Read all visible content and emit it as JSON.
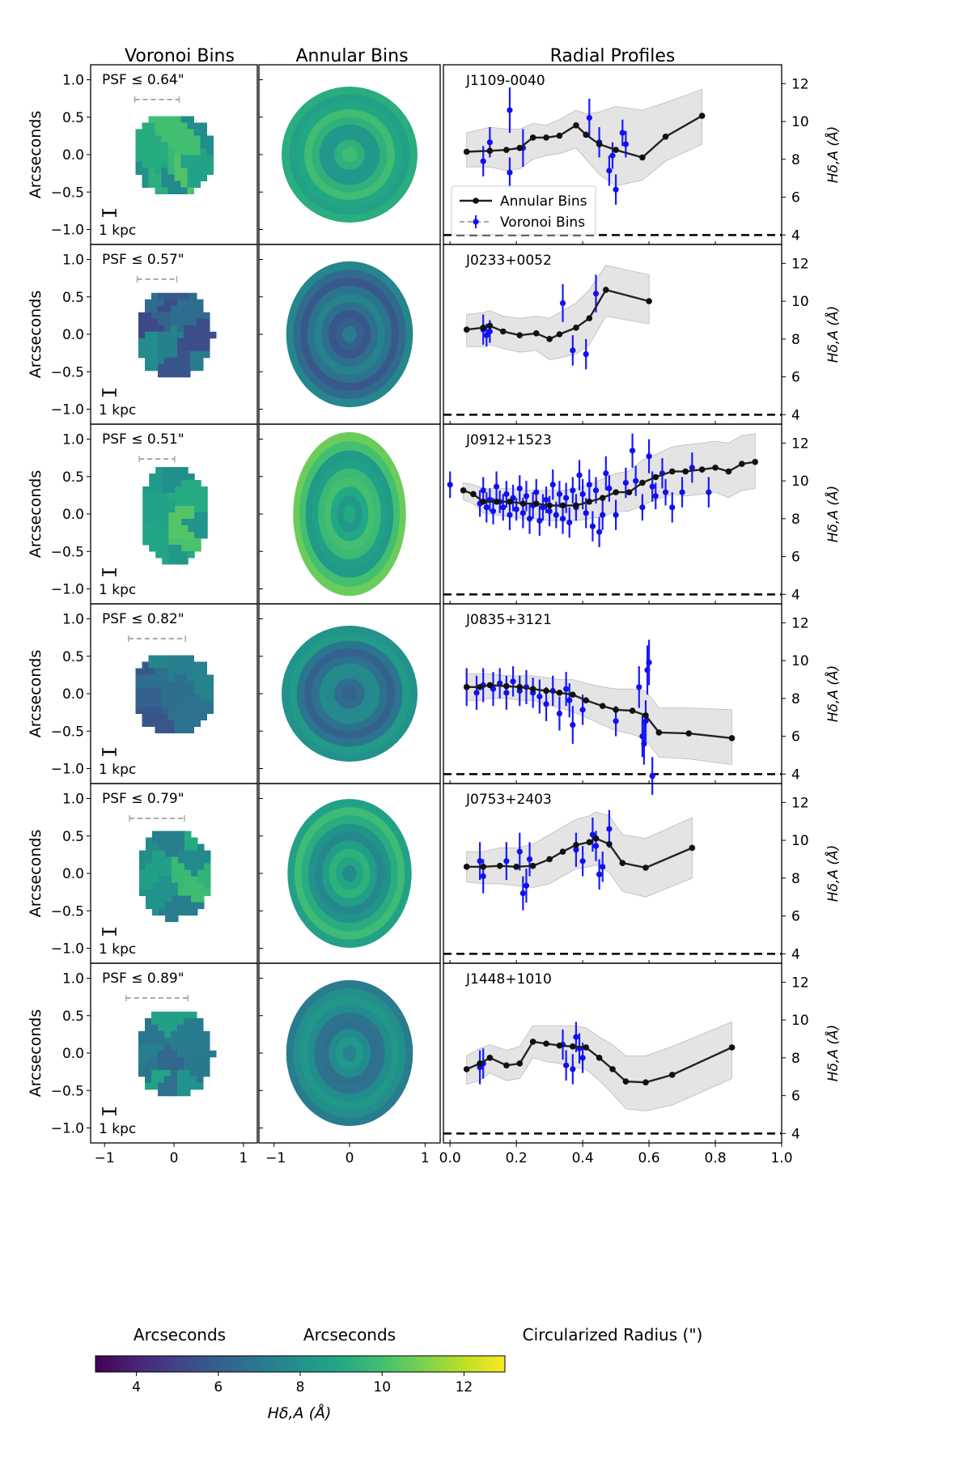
{
  "column_titles": [
    "Voronoi Bins",
    "Annular Bins",
    "Radial Profiles"
  ],
  "legend": {
    "annular": "Annular Bins",
    "voronoi": "Voronoi Bins"
  },
  "scale_bar_label": "1 kpc",
  "axes": {
    "map_ylabel": "Arcseconds",
    "map_xlabel": "Arcseconds",
    "profile_xlabel": "Circularized Radius (\")",
    "profile_ylabel": "Hδ,A (Å)",
    "colorbar_label": "Hδ,A (Å)",
    "map_ticks": [
      "1.0",
      "0.5",
      "0.0",
      "−0.5",
      "−1.0"
    ],
    "map_x_ticks_left": [
      "−1",
      "0",
      "1"
    ],
    "map_x_ticks_mid": [
      "−1",
      "0",
      "1"
    ],
    "profile_x_ticks": [
      "0.0",
      "0.2",
      "0.4",
      "0.6",
      "0.8",
      "1.0"
    ],
    "profile_y_ticks": [
      "12",
      "10",
      "8",
      "6",
      "4"
    ],
    "colorbar_ticks": [
      "4",
      "6",
      "8",
      "10",
      "12"
    ]
  },
  "chart_data": {
    "type": "line",
    "xlabel": "Circularized Radius (\")",
    "ylabel": "Hδ,A (Å)",
    "xlim": [
      -0.02,
      1.0
    ],
    "ylim": [
      3.5,
      13.0
    ],
    "reference_line_y": 4,
    "colorbar_range": [
      3,
      13
    ],
    "galaxies": [
      {
        "id": "J1109-0040",
        "psf": "PSF ≤ 0.64\"",
        "psf_arcsec": 0.64,
        "map_center": 9.0,
        "aspect": 1.0,
        "annular": {
          "x": [
            0.05,
            0.12,
            0.17,
            0.21,
            0.25,
            0.29,
            0.33,
            0.38,
            0.41,
            0.45,
            0.5,
            0.58,
            0.65,
            0.76
          ],
          "y": [
            8.4,
            8.45,
            8.5,
            8.6,
            9.15,
            9.15,
            9.25,
            9.8,
            9.3,
            8.8,
            8.5,
            8.1,
            9.2,
            10.3
          ]
        },
        "voronoi": [
          [
            0.1,
            7.9,
            0.8
          ],
          [
            0.12,
            8.9,
            0.8
          ],
          [
            0.18,
            10.6,
            1.2
          ],
          [
            0.18,
            7.3,
            0.8
          ],
          [
            0.22,
            8.6,
            1.0
          ],
          [
            0.42,
            10.2,
            1.0
          ],
          [
            0.45,
            8.9,
            0.8
          ],
          [
            0.48,
            7.4,
            0.8
          ],
          [
            0.49,
            8.2,
            0.7
          ],
          [
            0.5,
            6.4,
            0.8
          ],
          [
            0.52,
            9.4,
            0.7
          ],
          [
            0.53,
            8.8,
            0.7
          ]
        ],
        "band_upper": [
          9.4,
          9.7,
          9.6,
          9.6,
          9.9,
          9.8,
          10.1,
          10.6,
          10.4,
          10.5,
          10.8,
          10.6,
          11.0,
          11.7
        ],
        "band_lower": [
          7.6,
          7.6,
          7.4,
          7.5,
          8.0,
          8.2,
          8.3,
          8.6,
          8.0,
          7.2,
          6.6,
          6.9,
          7.9,
          8.8
        ]
      },
      {
        "id": "J0233+0052",
        "psf": "PSF ≤ 0.57\"",
        "psf_arcsec": 0.57,
        "map_center": 6.5,
        "aspect": 1.15,
        "annular": {
          "x": [
            0.05,
            0.1,
            0.12,
            0.16,
            0.21,
            0.26,
            0.3,
            0.33,
            0.38,
            0.42,
            0.47,
            0.6
          ],
          "y": [
            8.5,
            8.6,
            8.7,
            8.4,
            8.2,
            8.3,
            8.0,
            8.25,
            8.6,
            9.1,
            10.6,
            10.0
          ]
        },
        "voronoi": [
          [
            0.1,
            8.5,
            0.8
          ],
          [
            0.11,
            8.2,
            0.6
          ],
          [
            0.12,
            8.4,
            0.6
          ],
          [
            0.34,
            9.9,
            1.0
          ],
          [
            0.37,
            7.4,
            0.8
          ],
          [
            0.41,
            7.2,
            0.8
          ],
          [
            0.44,
            10.4,
            1.0
          ]
        ],
        "band_upper": [
          9.3,
          9.4,
          9.5,
          9.2,
          9.1,
          9.2,
          9.1,
          9.4,
          9.9,
          10.6,
          11.9,
          11.4
        ],
        "band_lower": [
          7.6,
          7.6,
          7.7,
          7.5,
          7.3,
          7.4,
          6.9,
          7.0,
          7.2,
          7.7,
          9.2,
          8.8
        ]
      },
      {
        "id": "J0912+1523",
        "psf": "PSF ≤ 0.51\"",
        "psf_arcsec": 0.51,
        "map_center": 9.2,
        "aspect": 1.45,
        "annular": {
          "x": [
            0.04,
            0.07,
            0.1,
            0.14,
            0.18,
            0.22,
            0.26,
            0.3,
            0.34,
            0.38,
            0.42,
            0.46,
            0.5,
            0.54,
            0.58,
            0.62,
            0.67,
            0.71,
            0.76,
            0.8,
            0.84,
            0.88,
            0.92
          ],
          "y": [
            9.5,
            9.3,
            8.9,
            8.9,
            8.9,
            8.8,
            8.8,
            8.7,
            8.7,
            8.7,
            8.9,
            9.1,
            9.4,
            9.4,
            9.9,
            10.2,
            10.5,
            10.5,
            10.6,
            10.7,
            10.5,
            10.9,
            11.0
          ]
        },
        "voronoi": [
          [
            0.0,
            9.8,
            0.7
          ],
          [
            0.09,
            8.8,
            0.7
          ],
          [
            0.1,
            9.5,
            0.7
          ],
          [
            0.11,
            8.6,
            0.8
          ],
          [
            0.12,
            9.0,
            0.6
          ],
          [
            0.13,
            8.4,
            0.7
          ],
          [
            0.14,
            9.7,
            0.8
          ],
          [
            0.15,
            8.9,
            0.6
          ],
          [
            0.16,
            8.6,
            0.7
          ],
          [
            0.17,
            9.3,
            0.7
          ],
          [
            0.18,
            8.2,
            0.8
          ],
          [
            0.19,
            9.1,
            0.7
          ],
          [
            0.2,
            8.5,
            0.6
          ],
          [
            0.21,
            9.6,
            0.7
          ],
          [
            0.22,
            8.3,
            0.8
          ],
          [
            0.23,
            9.2,
            0.8
          ],
          [
            0.24,
            8.0,
            0.8
          ],
          [
            0.25,
            8.7,
            0.7
          ],
          [
            0.26,
            9.4,
            0.7
          ],
          [
            0.27,
            7.9,
            0.8
          ],
          [
            0.28,
            8.6,
            0.7
          ],
          [
            0.29,
            9.0,
            0.7
          ],
          [
            0.3,
            8.4,
            0.8
          ],
          [
            0.31,
            9.8,
            0.8
          ],
          [
            0.32,
            8.2,
            0.7
          ],
          [
            0.33,
            9.3,
            0.7
          ],
          [
            0.34,
            8.0,
            0.8
          ],
          [
            0.35,
            9.1,
            0.8
          ],
          [
            0.36,
            7.8,
            0.8
          ],
          [
            0.37,
            9.5,
            0.7
          ],
          [
            0.38,
            8.6,
            0.7
          ],
          [
            0.39,
            10.3,
            0.8
          ],
          [
            0.4,
            9.3,
            0.8
          ],
          [
            0.41,
            8.3,
            0.8
          ],
          [
            0.42,
            9.8,
            0.8
          ],
          [
            0.43,
            7.6,
            0.8
          ],
          [
            0.44,
            9.5,
            0.7
          ],
          [
            0.45,
            7.3,
            0.8
          ],
          [
            0.46,
            8.2,
            0.8
          ],
          [
            0.47,
            10.4,
            0.9
          ],
          [
            0.48,
            9.6,
            0.7
          ],
          [
            0.5,
            8.2,
            0.8
          ],
          [
            0.53,
            9.9,
            0.8
          ],
          [
            0.55,
            11.6,
            0.9
          ],
          [
            0.56,
            10.0,
            0.8
          ],
          [
            0.58,
            8.6,
            0.7
          ],
          [
            0.6,
            11.3,
            0.9
          ],
          [
            0.61,
            9.7,
            0.8
          ],
          [
            0.62,
            9.2,
            0.7
          ],
          [
            0.64,
            10.4,
            0.8
          ],
          [
            0.65,
            9.4,
            0.7
          ],
          [
            0.67,
            8.6,
            0.8
          ],
          [
            0.7,
            9.4,
            0.8
          ],
          [
            0.73,
            10.7,
            0.8
          ],
          [
            0.78,
            9.4,
            0.8
          ]
        ],
        "band_upper": [
          9.9,
          9.8,
          9.6,
          9.6,
          9.6,
          9.5,
          9.5,
          9.5,
          9.5,
          9.6,
          9.8,
          10.1,
          10.4,
          10.5,
          11.1,
          11.4,
          11.8,
          11.9,
          12.0,
          12.1,
          12.0,
          12.4,
          12.5
        ],
        "band_lower": [
          9.0,
          8.8,
          8.3,
          8.2,
          8.1,
          8.0,
          8.0,
          7.9,
          7.9,
          7.9,
          8.0,
          8.1,
          8.4,
          8.4,
          8.7,
          9.0,
          9.3,
          9.2,
          9.3,
          9.4,
          9.1,
          9.5,
          9.6
        ]
      },
      {
        "id": "J0835+3121",
        "psf": "PSF ≤ 0.82\"",
        "psf_arcsec": 0.82,
        "map_center": 7.0,
        "aspect": 1.0,
        "annular": {
          "x": [
            0.05,
            0.09,
            0.12,
            0.17,
            0.21,
            0.25,
            0.29,
            0.33,
            0.37,
            0.41,
            0.46,
            0.5,
            0.55,
            0.59,
            0.63,
            0.72,
            0.85
          ],
          "y": [
            8.6,
            8.6,
            8.7,
            8.65,
            8.6,
            8.5,
            8.4,
            8.3,
            8.2,
            7.9,
            7.6,
            7.4,
            7.35,
            7.1,
            6.2,
            6.15,
            5.9
          ]
        },
        "voronoi": [
          [
            0.05,
            8.6,
            1.0
          ],
          [
            0.08,
            8.3,
            0.9
          ],
          [
            0.1,
            8.7,
            0.9
          ],
          [
            0.13,
            8.5,
            0.9
          ],
          [
            0.15,
            8.8,
            0.8
          ],
          [
            0.17,
            8.3,
            0.9
          ],
          [
            0.19,
            8.9,
            0.8
          ],
          [
            0.21,
            8.4,
            0.8
          ],
          [
            0.23,
            8.6,
            0.9
          ],
          [
            0.25,
            8.3,
            0.8
          ],
          [
            0.27,
            8.1,
            0.9
          ],
          [
            0.29,
            7.7,
            0.9
          ],
          [
            0.31,
            8.4,
            0.8
          ],
          [
            0.33,
            7.2,
            0.9
          ],
          [
            0.35,
            8.5,
            0.9
          ],
          [
            0.36,
            7.9,
            0.9
          ],
          [
            0.37,
            6.6,
            1.0
          ],
          [
            0.4,
            7.4,
            0.8
          ],
          [
            0.5,
            6.8,
            0.8
          ],
          [
            0.57,
            8.6,
            1.1
          ],
          [
            0.58,
            6.0,
            1.1
          ],
          [
            0.585,
            5.6,
            1.1
          ],
          [
            0.59,
            6.8,
            1.1
          ],
          [
            0.595,
            9.5,
            1.3
          ],
          [
            0.6,
            9.9,
            1.2
          ],
          [
            0.61,
            3.9,
            1.0
          ]
        ],
        "band_upper": [
          9.3,
          9.3,
          9.3,
          9.2,
          9.2,
          9.2,
          9.1,
          9.0,
          9.0,
          8.8,
          8.6,
          8.5,
          8.5,
          8.4,
          7.5,
          7.5,
          7.4
        ],
        "band_lower": [
          7.9,
          7.9,
          8.0,
          8.0,
          7.9,
          7.9,
          7.7,
          7.5,
          7.3,
          7.0,
          6.6,
          6.3,
          6.1,
          5.8,
          4.9,
          4.8,
          4.5
        ]
      },
      {
        "id": "J0753+2403",
        "psf": "PSF ≤ 0.79\"",
        "psf_arcsec": 0.79,
        "map_center": 8.5,
        "aspect": 1.2,
        "annular": {
          "x": [
            0.05,
            0.1,
            0.15,
            0.2,
            0.25,
            0.3,
            0.34,
            0.38,
            0.42,
            0.44,
            0.48,
            0.52,
            0.59,
            0.73
          ],
          "y": [
            8.6,
            8.6,
            8.65,
            8.6,
            8.65,
            9.0,
            9.4,
            9.75,
            9.9,
            10.1,
            9.8,
            8.8,
            8.55,
            9.6
          ]
        },
        "voronoi": [
          [
            0.09,
            8.9,
            1.0
          ],
          [
            0.1,
            8.1,
            0.9
          ],
          [
            0.17,
            8.9,
            1.0
          ],
          [
            0.21,
            9.4,
            1.0
          ],
          [
            0.22,
            7.2,
            0.9
          ],
          [
            0.23,
            7.6,
            0.9
          ],
          [
            0.24,
            9.0,
            0.9
          ],
          [
            0.38,
            9.5,
            0.9
          ],
          [
            0.4,
            8.9,
            0.8
          ],
          [
            0.43,
            10.3,
            0.9
          ],
          [
            0.44,
            9.7,
            0.8
          ],
          [
            0.45,
            8.2,
            0.8
          ],
          [
            0.46,
            8.6,
            0.8
          ],
          [
            0.48,
            10.6,
            1.0
          ]
        ],
        "band_upper": [
          9.4,
          9.4,
          9.6,
          9.6,
          9.8,
          10.3,
          10.7,
          11.1,
          11.3,
          11.5,
          11.3,
          10.3,
          10.1,
          11.2
        ],
        "band_lower": [
          7.8,
          7.7,
          7.7,
          7.6,
          7.5,
          7.7,
          8.1,
          8.5,
          8.6,
          8.7,
          8.3,
          7.3,
          7.0,
          8.0
        ]
      },
      {
        "id": "J1448+1010",
        "psf": "PSF ≤ 0.89\"",
        "psf_arcsec": 0.89,
        "map_center": 7.4,
        "aspect": 1.15,
        "annular": {
          "x": [
            0.05,
            0.09,
            0.12,
            0.17,
            0.21,
            0.25,
            0.29,
            0.33,
            0.37,
            0.41,
            0.45,
            0.49,
            0.53,
            0.59,
            0.67,
            0.85
          ],
          "y": [
            7.4,
            7.7,
            8.0,
            7.6,
            7.7,
            8.85,
            8.75,
            8.65,
            8.6,
            8.55,
            8.0,
            7.4,
            6.75,
            6.7,
            7.1,
            8.55
          ]
        },
        "voronoi": [
          [
            0.09,
            7.5,
            0.9
          ],
          [
            0.1,
            7.7,
            0.8
          ],
          [
            0.34,
            8.7,
            0.8
          ],
          [
            0.35,
            7.6,
            0.8
          ],
          [
            0.37,
            7.4,
            0.8
          ],
          [
            0.38,
            9.1,
            0.8
          ],
          [
            0.39,
            8.5,
            0.8
          ],
          [
            0.4,
            8.0,
            0.8
          ]
        ],
        "band_upper": [
          8.1,
          8.5,
          8.7,
          8.4,
          8.6,
          9.7,
          9.7,
          9.7,
          9.7,
          9.6,
          9.1,
          8.7,
          8.1,
          8.1,
          8.6,
          9.9
        ],
        "band_lower": [
          6.6,
          6.8,
          7.2,
          6.8,
          6.9,
          8.0,
          7.8,
          7.7,
          7.5,
          7.4,
          6.8,
          6.1,
          5.3,
          5.2,
          5.5,
          6.9
        ]
      }
    ]
  }
}
